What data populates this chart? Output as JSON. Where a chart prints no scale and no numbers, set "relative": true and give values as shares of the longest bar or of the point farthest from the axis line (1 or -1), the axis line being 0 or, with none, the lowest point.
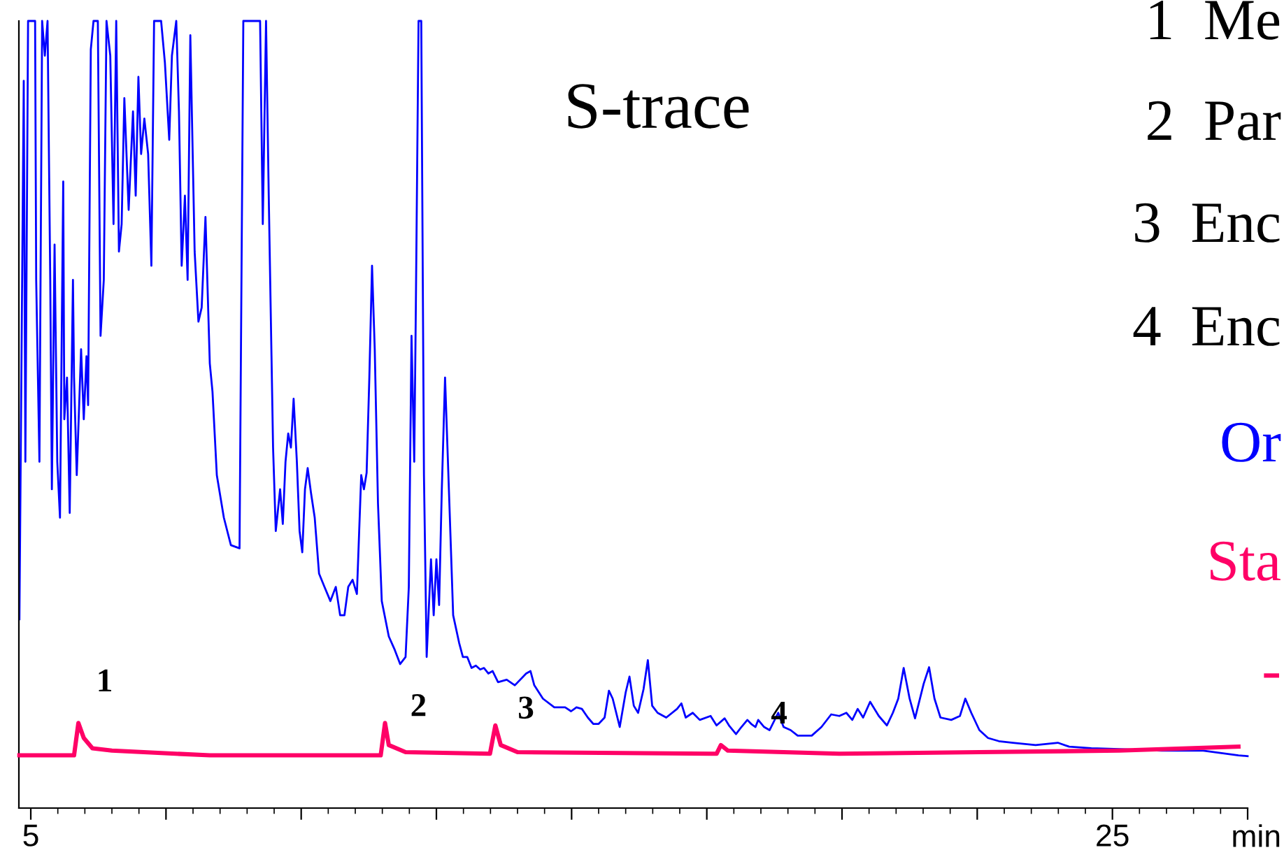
{
  "chart_data": {
    "type": "line",
    "title": "S-trace",
    "relative": true,
    "xlabel": "min",
    "xlim": [
      4.78,
      27.5
    ],
    "xticks": [
      {
        "value": 5,
        "label": "5"
      },
      {
        "value": 7.5,
        "label": null
      },
      {
        "value": 10,
        "label": null
      },
      {
        "value": 12.5,
        "label": null
      },
      {
        "value": 15,
        "label": null
      },
      {
        "value": 17.5,
        "label": null
      },
      {
        "value": 20,
        "label": null
      },
      {
        "value": 22.5,
        "label": null
      },
      {
        "value": 25,
        "label": "25"
      },
      {
        "value": 27.5,
        "label": null
      }
    ],
    "tick_labels": "x",
    "grid": false,
    "marker": "none",
    "line_style": "solid",
    "series": [
      {
        "name": "Or",
        "color": "#0000ff",
        "x": [
          4.79,
          4.87,
          4.9,
          4.95,
          5.08,
          5.1,
          5.16,
          5.21,
          5.26,
          5.31,
          5.36,
          5.39,
          5.44,
          5.49,
          5.54,
          5.6,
          5.62,
          5.67,
          5.72,
          5.78,
          5.8,
          5.85,
          5.93,
          5.98,
          6.03,
          6.06,
          6.11,
          6.16,
          6.24,
          6.29,
          6.35,
          6.4,
          6.47,
          6.53,
          6.58,
          6.63,
          6.68,
          6.73,
          6.81,
          6.89,
          6.94,
          6.99,
          7.04,
          7.1,
          7.17,
          7.23,
          7.28,
          7.41,
          7.48,
          7.56,
          7.61,
          7.69,
          7.74,
          7.79,
          7.85,
          7.9,
          7.95,
          8.03,
          8.1,
          8.16,
          8.23,
          8.31,
          8.36,
          8.44,
          8.57,
          8.7,
          8.86,
          8.93,
          9.24,
          9.29,
          9.35,
          9.4,
          9.48,
          9.53,
          9.61,
          9.66,
          9.71,
          9.76,
          9.81,
          9.86,
          9.92,
          9.97,
          10.02,
          10.07,
          10.12,
          10.18,
          10.25,
          10.33,
          10.43,
          10.54,
          10.64,
          10.72,
          10.8,
          10.87,
          10.95,
          11.03,
          11.11,
          11.16,
          11.21,
          11.26,
          11.31,
          11.36,
          11.42,
          11.49,
          11.62,
          11.73,
          11.83,
          11.93,
          11.99,
          12.04,
          12.09,
          12.12,
          12.17,
          12.22,
          12.27,
          12.32,
          12.4,
          12.45,
          12.5,
          12.55,
          12.6,
          12.66,
          12.74,
          12.81,
          12.92,
          12.99,
          13.07,
          13.15,
          13.23,
          13.31,
          13.38,
          13.46,
          13.54,
          13.64,
          13.8,
          13.95,
          14.16,
          14.24,
          14.31,
          14.47,
          14.68,
          14.88,
          14.99,
          15.09,
          15.19,
          15.3,
          15.4,
          15.5,
          15.61,
          15.69,
          15.76,
          15.89,
          16.0,
          16.07,
          16.15,
          16.23,
          16.33,
          16.41,
          16.49,
          16.59,
          16.75,
          16.95,
          17.03,
          17.11,
          17.24,
          17.37,
          17.57,
          17.68,
          17.83,
          17.91,
          18.04,
          18.14,
          18.25,
          18.32,
          18.4,
          18.45,
          18.56,
          18.66,
          18.82,
          18.92,
          19.05,
          19.18,
          19.44,
          19.62,
          19.8,
          19.95,
          20.08,
          20.19,
          20.29,
          20.39,
          20.52,
          20.68,
          20.83,
          20.94,
          21.04,
          21.14,
          21.25,
          21.35,
          21.51,
          21.61,
          21.71,
          21.82,
          22.02,
          22.18,
          22.28,
          22.39,
          22.54,
          22.7,
          22.9,
          23.16,
          23.58,
          23.99,
          24.2,
          24.61,
          25.13,
          25.91,
          26.68,
          27.33,
          27.5
        ],
        "values": [
          0.24,
          0.924,
          0.44,
          1,
          1,
          0.671,
          0.44,
          1,
          0.956,
          1,
          0.671,
          0.405,
          0.716,
          0.44,
          0.369,
          0.796,
          0.494,
          0.547,
          0.375,
          0.671,
          0.547,
          0.423,
          0.583,
          0.494,
          0.574,
          0.512,
          0.964,
          1,
          1,
          0.6,
          0.671,
          1,
          0.956,
          0.742,
          1,
          0.707,
          0.742,
          0.902,
          0.76,
          0.885,
          0.778,
          0.929,
          0.831,
          0.876,
          0.831,
          0.689,
          1,
          1,
          0.947,
          0.849,
          0.956,
          1,
          0.885,
          0.689,
          0.778,
          0.671,
          0.982,
          0.707,
          0.618,
          0.636,
          0.751,
          0.565,
          0.529,
          0.423,
          0.369,
          0.334,
          0.33,
          1,
          1,
          0.742,
          1,
          0.778,
          0.458,
          0.352,
          0.405,
          0.361,
          0.44,
          0.476,
          0.458,
          0.52,
          0.44,
          0.352,
          0.325,
          0.405,
          0.432,
          0.401,
          0.369,
          0.298,
          0.281,
          0.263,
          0.281,
          0.245,
          0.245,
          0.281,
          0.29,
          0.272,
          0.423,
          0.405,
          0.426,
          0.547,
          0.689,
          0.583,
          0.387,
          0.263,
          0.218,
          0.201,
          0.183,
          0.192,
          0.281,
          0.6,
          0.44,
          0.636,
          1,
          1,
          0.423,
          0.192,
          0.316,
          0.245,
          0.316,
          0.258,
          0.405,
          0.547,
          0.387,
          0.245,
          0.21,
          0.192,
          0.192,
          0.178,
          0.181,
          0.176,
          0.178,
          0.171,
          0.174,
          0.16,
          0.163,
          0.156,
          0.171,
          0.174,
          0.156,
          0.139,
          0.128,
          0.128,
          0.123,
          0.128,
          0.126,
          0.115,
          0.107,
          0.107,
          0.115,
          0.149,
          0.139,
          0.103,
          0.147,
          0.167,
          0.13,
          0.121,
          0.151,
          0.188,
          0.13,
          0.121,
          0.115,
          0.126,
          0.133,
          0.115,
          0.121,
          0.112,
          0.117,
          0.105,
          0.114,
          0.105,
          0.094,
          0.103,
          0.112,
          0.107,
          0.103,
          0.112,
          0.103,
          0.099,
          0.121,
          0.103,
          0.099,
          0.092,
          0.092,
          0.103,
          0.119,
          0.117,
          0.121,
          0.112,
          0.126,
          0.115,
          0.135,
          0.117,
          0.105,
          0.121,
          0.139,
          0.178,
          0.139,
          0.114,
          0.158,
          0.179,
          0.139,
          0.115,
          0.112,
          0.117,
          0.139,
          0.121,
          0.099,
          0.089,
          0.085,
          0.083,
          0.08,
          0.083,
          0.078,
          0.076,
          0.075,
          0.073,
          0.073,
          0.067,
          0.066
        ]
      },
      {
        "name": "Sta",
        "color": "#ff0066",
        "x": [
          4.79,
          5.8,
          5.88,
          5.98,
          6.14,
          6.5,
          8.31,
          11.47,
          11.55,
          11.62,
          11.93,
          13.49,
          13.59,
          13.69,
          14.0,
          17.68,
          17.76,
          17.89,
          19.95,
          22.54,
          25.13,
          27.33
        ],
        "values": [
          0.067,
          0.067,
          0.108,
          0.089,
          0.076,
          0.073,
          0.067,
          0.067,
          0.108,
          0.08,
          0.071,
          0.069,
          0.105,
          0.08,
          0.071,
          0.069,
          0.08,
          0.073,
          0.069,
          0.071,
          0.073,
          0.078
        ]
      }
    ],
    "annotations": [
      {
        "text": "1",
        "x": 5.88,
        "y": 0.108
      },
      {
        "text": "2",
        "x": 11.55,
        "y": 0.108
      },
      {
        "text": "3",
        "x": 13.59,
        "y": 0.105
      },
      {
        "text": "4",
        "x": 17.76,
        "y": 0.08
      },
      "1  Me",
      "2  Par",
      "3  Enc",
      "4  Enc",
      "-"
    ]
  }
}
